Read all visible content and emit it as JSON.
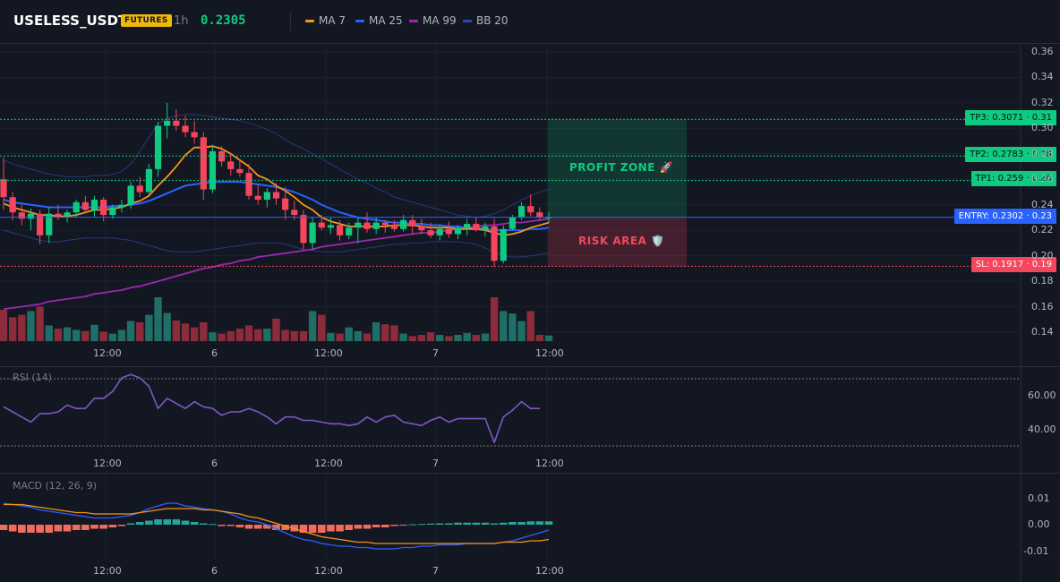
{
  "header": {
    "symbol": "USELESS_USDT",
    "badge": "FUTURES",
    "timeframe": "1h",
    "last_price": "0.2305",
    "legend": [
      {
        "label": "MA 7",
        "color": "#f7931a"
      },
      {
        "label": "MA 25",
        "color": "#2962ff"
      },
      {
        "label": "MA 99",
        "color": "#9c27b0"
      },
      {
        "label": "BB 20",
        "color": "#2a3f8f"
      }
    ]
  },
  "zones": {
    "profit_label": "PROFIT ZONE 🚀",
    "risk_label": "RISK AREA 🛡️"
  },
  "levels": {
    "tp3": "TP3: 0.3071 · 0.31",
    "tp2": "TP2: 0.2783 · 0.28",
    "tp1": "TP1: 0.259 · 0.26",
    "entry": "ENTRY: 0.2302 · 0.23",
    "sl": "SL: 0.1917 · 0.19"
  },
  "price_axis": [
    "0.36",
    "0.34",
    "0.32",
    "0.30",
    "0.28",
    "0.26",
    "0.24",
    "0.22",
    "0.20",
    "0.18",
    "0.16",
    "0.14"
  ],
  "time_axis": [
    "12:00",
    "6",
    "12:00",
    "7",
    "12:00"
  ],
  "rsi": {
    "label": "RSI (14)",
    "axis": [
      "60.00",
      "40.00"
    ]
  },
  "macd": {
    "label": "MACD (12, 26, 9)",
    "axis": [
      "0.01",
      "0.00",
      "-0.01"
    ]
  },
  "colors": {
    "up": "#26a69a",
    "up_bright": "#0ecb81",
    "down": "#f6465d",
    "bg": "#131722"
  },
  "chart_data": {
    "type": "candlestick",
    "title": "USELESS_USDT",
    "ylim": [
      0.13,
      0.365
    ],
    "candles": [
      {
        "o": 0.26,
        "h": 0.277,
        "l": 0.236,
        "c": 0.246
      },
      {
        "o": 0.246,
        "h": 0.25,
        "l": 0.228,
        "c": 0.234
      },
      {
        "o": 0.234,
        "h": 0.24,
        "l": 0.224,
        "c": 0.229
      },
      {
        "o": 0.229,
        "h": 0.237,
        "l": 0.22,
        "c": 0.233
      },
      {
        "o": 0.233,
        "h": 0.236,
        "l": 0.209,
        "c": 0.216
      },
      {
        "o": 0.216,
        "h": 0.238,
        "l": 0.21,
        "c": 0.233
      },
      {
        "o": 0.233,
        "h": 0.24,
        "l": 0.228,
        "c": 0.231
      },
      {
        "o": 0.231,
        "h": 0.236,
        "l": 0.226,
        "c": 0.234
      },
      {
        "o": 0.234,
        "h": 0.244,
        "l": 0.23,
        "c": 0.242
      },
      {
        "o": 0.242,
        "h": 0.247,
        "l": 0.234,
        "c": 0.236
      },
      {
        "o": 0.236,
        "h": 0.247,
        "l": 0.23,
        "c": 0.244
      },
      {
        "o": 0.244,
        "h": 0.246,
        "l": 0.227,
        "c": 0.232
      },
      {
        "o": 0.232,
        "h": 0.24,
        "l": 0.229,
        "c": 0.238
      },
      {
        "o": 0.238,
        "h": 0.244,
        "l": 0.234,
        "c": 0.24
      },
      {
        "o": 0.24,
        "h": 0.258,
        "l": 0.237,
        "c": 0.255
      },
      {
        "o": 0.255,
        "h": 0.262,
        "l": 0.246,
        "c": 0.25
      },
      {
        "o": 0.25,
        "h": 0.272,
        "l": 0.247,
        "c": 0.268
      },
      {
        "o": 0.268,
        "h": 0.305,
        "l": 0.262,
        "c": 0.302
      },
      {
        "o": 0.302,
        "h": 0.32,
        "l": 0.292,
        "c": 0.306
      },
      {
        "o": 0.306,
        "h": 0.315,
        "l": 0.298,
        "c": 0.302
      },
      {
        "o": 0.302,
        "h": 0.31,
        "l": 0.293,
        "c": 0.297
      },
      {
        "o": 0.297,
        "h": 0.306,
        "l": 0.288,
        "c": 0.293
      },
      {
        "o": 0.293,
        "h": 0.297,
        "l": 0.244,
        "c": 0.252
      },
      {
        "o": 0.252,
        "h": 0.287,
        "l": 0.249,
        "c": 0.282
      },
      {
        "o": 0.282,
        "h": 0.286,
        "l": 0.27,
        "c": 0.274
      },
      {
        "o": 0.274,
        "h": 0.281,
        "l": 0.263,
        "c": 0.268
      },
      {
        "o": 0.268,
        "h": 0.276,
        "l": 0.262,
        "c": 0.265
      },
      {
        "o": 0.265,
        "h": 0.272,
        "l": 0.244,
        "c": 0.247
      },
      {
        "o": 0.247,
        "h": 0.256,
        "l": 0.24,
        "c": 0.244
      },
      {
        "o": 0.244,
        "h": 0.253,
        "l": 0.238,
        "c": 0.25
      },
      {
        "o": 0.25,
        "h": 0.257,
        "l": 0.24,
        "c": 0.245
      },
      {
        "o": 0.245,
        "h": 0.254,
        "l": 0.228,
        "c": 0.236
      },
      {
        "o": 0.236,
        "h": 0.243,
        "l": 0.228,
        "c": 0.232
      },
      {
        "o": 0.232,
        "h": 0.236,
        "l": 0.205,
        "c": 0.21
      },
      {
        "o": 0.21,
        "h": 0.23,
        "l": 0.205,
        "c": 0.226
      },
      {
        "o": 0.226,
        "h": 0.232,
        "l": 0.22,
        "c": 0.222
      },
      {
        "o": 0.222,
        "h": 0.23,
        "l": 0.217,
        "c": 0.224
      },
      {
        "o": 0.224,
        "h": 0.228,
        "l": 0.212,
        "c": 0.216
      },
      {
        "o": 0.216,
        "h": 0.226,
        "l": 0.213,
        "c": 0.222
      },
      {
        "o": 0.222,
        "h": 0.23,
        "l": 0.21,
        "c": 0.226
      },
      {
        "o": 0.226,
        "h": 0.234,
        "l": 0.218,
        "c": 0.221
      },
      {
        "o": 0.221,
        "h": 0.23,
        "l": 0.217,
        "c": 0.226
      },
      {
        "o": 0.226,
        "h": 0.228,
        "l": 0.218,
        "c": 0.224
      },
      {
        "o": 0.224,
        "h": 0.228,
        "l": 0.219,
        "c": 0.221
      },
      {
        "o": 0.221,
        "h": 0.232,
        "l": 0.219,
        "c": 0.228
      },
      {
        "o": 0.228,
        "h": 0.232,
        "l": 0.217,
        "c": 0.223
      },
      {
        "o": 0.223,
        "h": 0.229,
        "l": 0.217,
        "c": 0.22
      },
      {
        "o": 0.22,
        "h": 0.226,
        "l": 0.214,
        "c": 0.216
      },
      {
        "o": 0.216,
        "h": 0.224,
        "l": 0.212,
        "c": 0.221
      },
      {
        "o": 0.221,
        "h": 0.227,
        "l": 0.214,
        "c": 0.217
      },
      {
        "o": 0.217,
        "h": 0.224,
        "l": 0.213,
        "c": 0.222
      },
      {
        "o": 0.222,
        "h": 0.229,
        "l": 0.216,
        "c": 0.225
      },
      {
        "o": 0.225,
        "h": 0.23,
        "l": 0.219,
        "c": 0.22
      },
      {
        "o": 0.22,
        "h": 0.226,
        "l": 0.215,
        "c": 0.223
      },
      {
        "o": 0.223,
        "h": 0.229,
        "l": 0.191,
        "c": 0.196
      },
      {
        "o": 0.196,
        "h": 0.224,
        "l": 0.194,
        "c": 0.221
      },
      {
        "o": 0.221,
        "h": 0.232,
        "l": 0.22,
        "c": 0.23
      },
      {
        "o": 0.23,
        "h": 0.242,
        "l": 0.228,
        "c": 0.239
      },
      {
        "o": 0.239,
        "h": 0.248,
        "l": 0.231,
        "c": 0.234
      },
      {
        "o": 0.234,
        "h": 0.238,
        "l": 0.228,
        "c": 0.23
      },
      {
        "o": 0.23,
        "h": 0.234,
        "l": 0.226,
        "c": 0.2305
      }
    ],
    "volume": [
      0.5,
      0.38,
      0.42,
      0.48,
      0.55,
      0.25,
      0.2,
      0.22,
      0.18,
      0.16,
      0.26,
      0.15,
      0.12,
      0.18,
      0.32,
      0.3,
      0.42,
      0.7,
      0.45,
      0.33,
      0.28,
      0.22,
      0.3,
      0.14,
      0.12,
      0.16,
      0.2,
      0.25,
      0.19,
      0.2,
      0.36,
      0.18,
      0.16,
      0.16,
      0.48,
      0.42,
      0.13,
      0.12,
      0.22,
      0.16,
      0.12,
      0.3,
      0.27,
      0.25,
      0.12,
      0.08,
      0.1,
      0.14,
      0.1,
      0.08,
      0.1,
      0.13,
      0.1,
      0.12,
      0.7,
      0.48,
      0.44,
      0.32,
      0.48,
      0.1,
      0.09
    ],
    "ma7": [
      0.241,
      0.238,
      0.236,
      0.234,
      0.232,
      0.232,
      0.231,
      0.231,
      0.232,
      0.234,
      0.236,
      0.236,
      0.237,
      0.238,
      0.241,
      0.243,
      0.247,
      0.255,
      0.262,
      0.27,
      0.279,
      0.285,
      0.285,
      0.286,
      0.284,
      0.28,
      0.275,
      0.27,
      0.263,
      0.26,
      0.255,
      0.251,
      0.246,
      0.24,
      0.236,
      0.23,
      0.227,
      0.225,
      0.223,
      0.223,
      0.223,
      0.223,
      0.223,
      0.224,
      0.224,
      0.224,
      0.223,
      0.222,
      0.222,
      0.222,
      0.221,
      0.221,
      0.221,
      0.22,
      0.218,
      0.216,
      0.217,
      0.219,
      0.222,
      0.224,
      0.226
    ],
    "ma25": [
      0.244,
      0.242,
      0.241,
      0.24,
      0.239,
      0.238,
      0.238,
      0.238,
      0.238,
      0.238,
      0.238,
      0.238,
      0.239,
      0.239,
      0.24,
      0.241,
      0.243,
      0.246,
      0.249,
      0.252,
      0.255,
      0.256,
      0.257,
      0.258,
      0.258,
      0.258,
      0.258,
      0.257,
      0.256,
      0.255,
      0.254,
      0.252,
      0.25,
      0.247,
      0.244,
      0.24,
      0.237,
      0.234,
      0.232,
      0.23,
      0.229,
      0.228,
      0.227,
      0.226,
      0.226,
      0.225,
      0.225,
      0.224,
      0.224,
      0.223,
      0.223,
      0.222,
      0.222,
      0.221,
      0.22,
      0.22,
      0.22,
      0.22,
      0.221,
      0.221,
      0.222
    ],
    "ma99": [
      0.158,
      0.159,
      0.16,
      0.161,
      0.162,
      0.164,
      0.165,
      0.166,
      0.167,
      0.168,
      0.17,
      0.171,
      0.172,
      0.173,
      0.175,
      0.176,
      0.178,
      0.18,
      0.182,
      0.184,
      0.186,
      0.188,
      0.19,
      0.191,
      0.193,
      0.194,
      0.196,
      0.197,
      0.199,
      0.2,
      0.201,
      0.202,
      0.203,
      0.204,
      0.205,
      0.207,
      0.208,
      0.209,
      0.21,
      0.211,
      0.212,
      0.213,
      0.214,
      0.215,
      0.216,
      0.217,
      0.218,
      0.218,
      0.219,
      0.22,
      0.221,
      0.222,
      0.223,
      0.224,
      0.224,
      0.225,
      0.226,
      0.226,
      0.227,
      0.228,
      0.229
    ],
    "bb_upper": [
      0.275,
      0.272,
      0.27,
      0.268,
      0.266,
      0.264,
      0.263,
      0.262,
      0.262,
      0.262,
      0.263,
      0.263,
      0.264,
      0.266,
      0.272,
      0.282,
      0.293,
      0.304,
      0.308,
      0.31,
      0.311,
      0.311,
      0.31,
      0.309,
      0.308,
      0.307,
      0.306,
      0.304,
      0.302,
      0.299,
      0.296,
      0.291,
      0.287,
      0.284,
      0.28,
      0.276,
      0.272,
      0.268,
      0.264,
      0.26,
      0.257,
      0.253,
      0.25,
      0.246,
      0.244,
      0.242,
      0.24,
      0.238,
      0.236,
      0.234,
      0.232,
      0.231,
      0.23,
      0.231,
      0.233,
      0.236,
      0.24,
      0.244,
      0.247,
      0.25,
      0.252
    ],
    "bb_lower": [
      0.22,
      0.218,
      0.216,
      0.214,
      0.212,
      0.211,
      0.211,
      0.212,
      0.213,
      0.214,
      0.214,
      0.214,
      0.214,
      0.213,
      0.212,
      0.21,
      0.208,
      0.206,
      0.204,
      0.203,
      0.203,
      0.203,
      0.204,
      0.205,
      0.206,
      0.207,
      0.208,
      0.209,
      0.21,
      0.21,
      0.21,
      0.209,
      0.207,
      0.205,
      0.204,
      0.203,
      0.203,
      0.203,
      0.204,
      0.205,
      0.206,
      0.207,
      0.208,
      0.209,
      0.209,
      0.21,
      0.21,
      0.211,
      0.211,
      0.211,
      0.211,
      0.21,
      0.209,
      0.206,
      0.203,
      0.2,
      0.199,
      0.199,
      0.2,
      0.201,
      0.202
    ],
    "rsi": [
      53,
      50,
      47,
      44,
      49,
      49,
      50,
      54,
      52,
      52,
      58,
      58,
      62,
      70,
      72,
      70,
      65,
      52,
      58,
      55,
      52,
      56,
      53,
      52,
      48,
      50,
      50,
      52,
      50,
      47,
      43,
      47,
      47,
      45,
      45,
      44,
      43,
      43,
      42,
      43,
      47,
      44,
      47,
      48,
      44,
      43,
      42,
      45,
      47,
      44,
      46,
      46,
      46,
      46,
      32,
      47,
      51,
      56,
      52,
      52,
      null
    ],
    "macd_hist": [
      -0.004,
      -0.005,
      -0.006,
      -0.006,
      -0.006,
      -0.006,
      -0.005,
      -0.005,
      -0.004,
      -0.004,
      -0.003,
      -0.003,
      -0.002,
      -0.001,
      0.001,
      0.002,
      0.003,
      0.004,
      0.004,
      0.004,
      0.003,
      0.002,
      0.001,
      0.0005,
      -0.001,
      -0.001,
      -0.002,
      -0.003,
      -0.003,
      -0.003,
      -0.004,
      -0.004,
      -0.005,
      -0.006,
      -0.006,
      -0.006,
      -0.005,
      -0.005,
      -0.004,
      -0.003,
      -0.003,
      -0.002,
      -0.002,
      -0.001,
      -0.0005,
      0.0003,
      0.0005,
      0.0008,
      0.001,
      0.001,
      0.0015,
      0.0015,
      0.0015,
      0.0015,
      0.001,
      0.0015,
      0.002,
      0.002,
      0.0025,
      0.0025,
      0.0025
    ],
    "macd_line": [
      0.016,
      0.015,
      0.014,
      0.013,
      0.011,
      0.01,
      0.009,
      0.008,
      0.007,
      0.006,
      0.005,
      0.005,
      0.005,
      0.006,
      0.007,
      0.009,
      0.012,
      0.014,
      0.016,
      0.016,
      0.014,
      0.013,
      0.012,
      0.011,
      0.01,
      0.008,
      0.005,
      0.003,
      0.002,
      0.0,
      -0.003,
      -0.006,
      -0.009,
      -0.011,
      -0.012,
      -0.014,
      -0.015,
      -0.016,
      -0.016,
      -0.017,
      -0.017,
      -0.018,
      -0.018,
      -0.018,
      -0.017,
      -0.017,
      -0.016,
      -0.016,
      -0.015,
      -0.015,
      -0.015,
      -0.014,
      -0.014,
      -0.014,
      -0.014,
      -0.013,
      -0.012,
      -0.01,
      -0.008,
      -0.006,
      -0.004
    ],
    "macd_signal": [
      0.015,
      0.015,
      0.015,
      0.014,
      0.013,
      0.012,
      0.011,
      0.01,
      0.009,
      0.009,
      0.008,
      0.008,
      0.008,
      0.008,
      0.008,
      0.009,
      0.01,
      0.011,
      0.012,
      0.012,
      0.012,
      0.012,
      0.011,
      0.011,
      0.01,
      0.009,
      0.008,
      0.006,
      0.005,
      0.003,
      0.001,
      -0.001,
      -0.003,
      -0.005,
      -0.007,
      -0.009,
      -0.01,
      -0.011,
      -0.012,
      -0.013,
      -0.013,
      -0.014,
      -0.014,
      -0.014,
      -0.014,
      -0.014,
      -0.014,
      -0.014,
      -0.014,
      -0.014,
      -0.014,
      -0.014,
      -0.014,
      -0.014,
      -0.014,
      -0.013,
      -0.013,
      -0.013,
      -0.012,
      -0.012,
      -0.011
    ]
  }
}
